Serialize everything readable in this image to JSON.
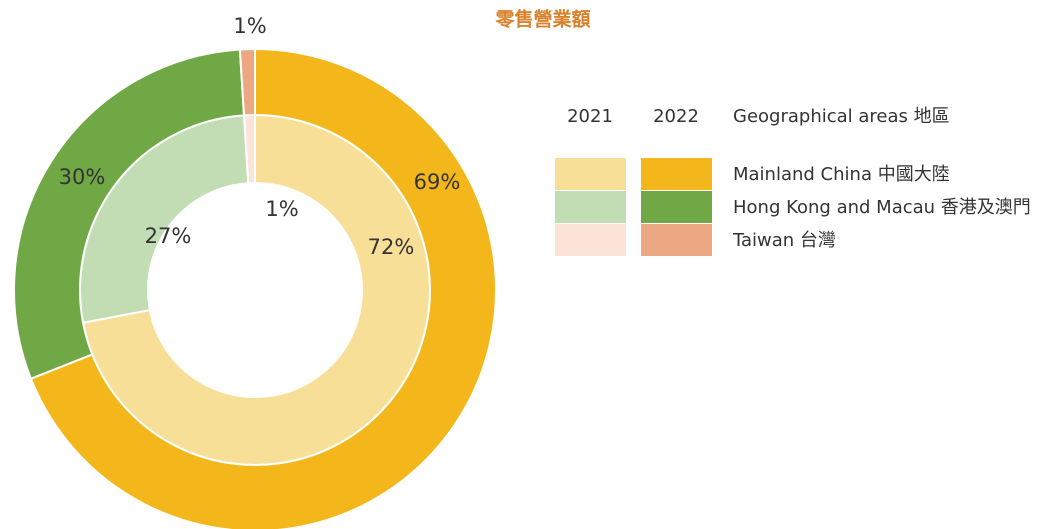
{
  "chart_data": {
    "type": "donut",
    "title": "零售營業額",
    "legend_title": "Geographical areas 地區",
    "categories": [
      "Mainland China 中國大陸",
      "Hong Kong and Macau 香港及澳門",
      "Taiwan 台灣"
    ],
    "series": [
      {
        "name": "2021",
        "colors": [
          "#f8df98",
          "#c2ddb4",
          "#fce3d8"
        ],
        "values": [
          72,
          27,
          1
        ],
        "value_labels": [
          "72%",
          "27%",
          "1%"
        ]
      },
      {
        "name": "2022",
        "colors": [
          "#f4b71b",
          "#6fa845",
          "#eba882"
        ],
        "values": [
          69,
          30,
          1
        ],
        "value_labels": [
          "69%",
          "30%",
          "1%"
        ]
      }
    ]
  }
}
